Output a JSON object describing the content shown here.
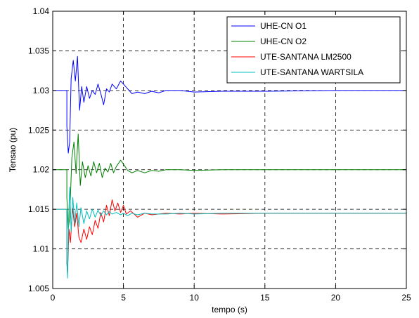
{
  "chart_data": {
    "type": "line",
    "title": "",
    "xlabel": "tempo (s)",
    "ylabel": "Tensao (pu)",
    "xlim": [
      0,
      25
    ],
    "ylim": [
      1.005,
      1.04
    ],
    "xticks": [
      0,
      5,
      10,
      15,
      20,
      25
    ],
    "yticks": [
      1.005,
      1.01,
      1.015,
      1.02,
      1.025,
      1.03,
      1.035,
      1.04
    ],
    "xtick_labels": [
      "0",
      "5",
      "10",
      "15",
      "20",
      "25"
    ],
    "ytick_labels": [
      "1.005",
      "1.01",
      "1.015",
      "1.02",
      "1.025",
      "1.03",
      "1.035",
      "1.04"
    ],
    "grid": true,
    "legend_position": "top-right",
    "series": [
      {
        "name": "UHE-CN O1",
        "color": "#0000ff",
        "x": [
          0,
          1.0,
          1.0,
          1.1,
          1.2,
          1.3,
          1.45,
          1.6,
          1.75,
          1.9,
          2.05,
          2.2,
          2.4,
          2.6,
          2.8,
          3.0,
          3.2,
          3.4,
          3.6,
          3.8,
          4.0,
          4.2,
          4.5,
          4.8,
          5.0,
          5.3,
          5.6,
          6.0,
          6.5,
          7.0,
          7.5,
          8.0,
          9.0,
          10.0,
          12.0,
          15.0,
          20.0,
          25.0
        ],
        "y": [
          1.03,
          1.03,
          1.0255,
          1.0221,
          1.0235,
          1.0315,
          1.0338,
          1.0312,
          1.0343,
          1.0275,
          1.0305,
          1.0285,
          1.0305,
          1.029,
          1.03,
          1.0295,
          1.0308,
          1.0296,
          1.0282,
          1.0302,
          1.0298,
          1.0308,
          1.0302,
          1.0312,
          1.0308,
          1.0302,
          1.0296,
          1.0298,
          1.0296,
          1.0299,
          1.0297,
          1.03,
          1.03,
          1.0298,
          1.0299,
          1.0299,
          1.03,
          1.03
        ]
      },
      {
        "name": "UHE-CN O2",
        "color": "#008000",
        "x": [
          0,
          1.0,
          1.0,
          1.1,
          1.2,
          1.35,
          1.5,
          1.65,
          1.8,
          1.95,
          2.1,
          2.3,
          2.5,
          2.7,
          2.9,
          3.1,
          3.3,
          3.5,
          3.7,
          3.9,
          4.1,
          4.3,
          4.5,
          4.8,
          5.0,
          5.3,
          5.6,
          6.0,
          6.5,
          7.0,
          7.5,
          8.0,
          9.0,
          10.0,
          12.0,
          15.0,
          20.0,
          25.0
        ],
        "y": [
          1.02,
          1.02,
          1.0165,
          1.0125,
          1.014,
          1.0215,
          1.0235,
          1.0195,
          1.0245,
          1.018,
          1.021,
          1.019,
          1.0205,
          1.0192,
          1.021,
          1.0196,
          1.0208,
          1.019,
          1.0202,
          1.0197,
          1.0208,
          1.0196,
          1.0204,
          1.0212,
          1.0207,
          1.0199,
          1.0196,
          1.0199,
          1.0196,
          1.0199,
          1.0198,
          1.02,
          1.02,
          1.0199,
          1.02,
          1.02,
          1.02,
          1.02
        ]
      },
      {
        "name": "UTE-SANTANA LM2500",
        "color": "#ff0000",
        "x": [
          0,
          1.0,
          1.0,
          1.05,
          1.15,
          1.25,
          1.4,
          1.55,
          1.7,
          1.85,
          2.0,
          2.2,
          2.4,
          2.6,
          2.8,
          3.0,
          3.2,
          3.4,
          3.6,
          3.8,
          4.0,
          4.2,
          4.4,
          4.6,
          4.8,
          5.0,
          5.2,
          5.5,
          6.0,
          6.5,
          7.0,
          8.0,
          9.0,
          10.0,
          12.0,
          15.0,
          20.0,
          25.0
        ],
        "y": [
          1.015,
          1.015,
          1.0082,
          1.0068,
          1.0125,
          1.0108,
          1.0152,
          1.0128,
          1.0145,
          1.0115,
          1.0108,
          1.0125,
          1.0112,
          1.0128,
          1.0118,
          1.0136,
          1.0126,
          1.0146,
          1.0134,
          1.0155,
          1.0142,
          1.0162,
          1.0148,
          1.0158,
          1.0146,
          1.0155,
          1.0144,
          1.0148,
          1.014,
          1.0145,
          1.0143,
          1.0145,
          1.0144,
          1.0145,
          1.0144,
          1.0145,
          1.0145,
          1.0145
        ]
      },
      {
        "name": "UTE-SANTANA WARTSILA",
        "color": "#00bfbf",
        "x": [
          0,
          1.0,
          1.0,
          1.05,
          1.12,
          1.2,
          1.3,
          1.42,
          1.55,
          1.7,
          1.85,
          2.0,
          2.2,
          2.4,
          2.6,
          2.8,
          3.0,
          3.2,
          3.4,
          3.6,
          3.8,
          4.0,
          4.2,
          4.5,
          4.8,
          5.0,
          5.3,
          5.6,
          6.0,
          6.5,
          7.0,
          8.0,
          9.0,
          10.0,
          12.0,
          15.0,
          20.0,
          25.0
        ],
        "y": [
          1.015,
          1.015,
          1.0088,
          1.0063,
          1.0135,
          1.0178,
          1.0122,
          1.0165,
          1.0132,
          1.0158,
          1.0128,
          1.0152,
          1.0132,
          1.0148,
          1.0138,
          1.015,
          1.014,
          1.0149,
          1.0142,
          1.0148,
          1.0143,
          1.0147,
          1.0144,
          1.0146,
          1.0143,
          1.0145,
          1.0142,
          1.0145,
          1.0143,
          1.0145,
          1.0144,
          1.0144,
          1.0145,
          1.0144,
          1.0145,
          1.0145,
          1.0145,
          1.0145
        ]
      }
    ]
  }
}
